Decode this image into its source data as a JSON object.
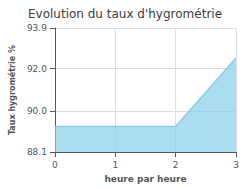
{
  "chart_data": {
    "type": "area",
    "title": "Evolution du taux d'hygrométrie",
    "xlabel": "heure par heure",
    "ylabel": "Taux hygrométrie %",
    "x": [
      0,
      2,
      3
    ],
    "values": [
      89.3,
      89.3,
      92.5
    ],
    "color": "#87ceeb",
    "xlim": [
      0,
      3
    ],
    "ylim": [
      88.1,
      93.9
    ],
    "xticks": [
      0,
      1,
      2,
      3
    ],
    "yticks": [
      88.1,
      {
        "value": 90,
        "label": "90.0"
      },
      {
        "value": 92,
        "label": "92.0"
      },
      93.9
    ],
    "grid": true
  }
}
